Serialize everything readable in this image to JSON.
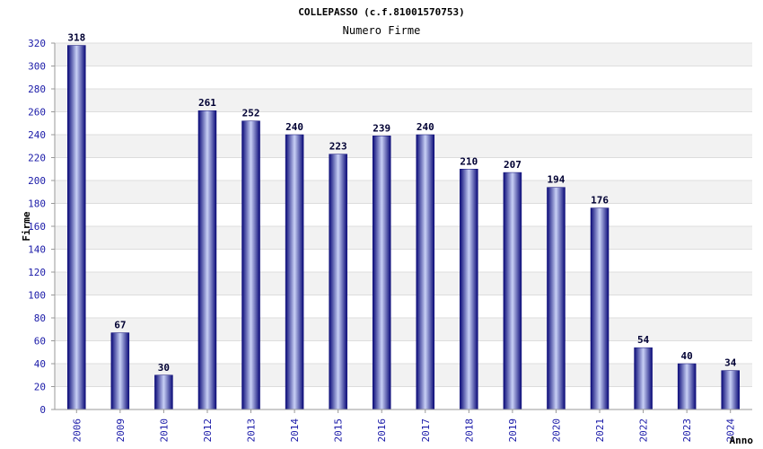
{
  "colors": {
    "bar_dark": "#0a0a78",
    "bar_light": "#c8d0f5",
    "band": "#f2f2f2",
    "grid": "#dddddd",
    "axis": "#999999",
    "tick_text": "#1a1aa8"
  },
  "chart_data": {
    "type": "bar",
    "title": "COLLEPASSO (c.f.81001570753)",
    "subtitle": "Numero Firme",
    "xlabel": "Anno",
    "ylabel": "Firme",
    "ylim": [
      0,
      320
    ],
    "yticks": [
      0,
      20,
      40,
      60,
      80,
      100,
      120,
      140,
      160,
      180,
      200,
      220,
      240,
      260,
      280,
      300,
      320
    ],
    "grid": true,
    "categories": [
      "2006",
      "2009",
      "2010",
      "2012",
      "2013",
      "2014",
      "2015",
      "2016",
      "2017",
      "2018",
      "2019",
      "2020",
      "2021",
      "2022",
      "2023",
      "2024"
    ],
    "values": [
      318,
      67,
      30,
      261,
      252,
      240,
      223,
      239,
      240,
      210,
      207,
      194,
      176,
      54,
      40,
      34
    ],
    "value_labels": true
  }
}
